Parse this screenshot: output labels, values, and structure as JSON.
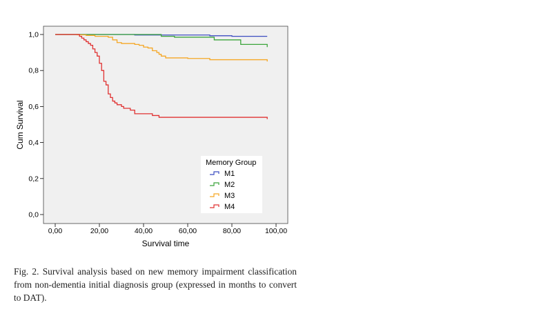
{
  "chart_data": {
    "type": "line",
    "subtype": "kaplan-meier-step",
    "xlabel": "Survival time",
    "ylabel": "Cum Survival",
    "xlim": [
      0,
      100
    ],
    "ylim": [
      0,
      1
    ],
    "x_ticks": [
      0,
      20,
      40,
      60,
      80,
      100
    ],
    "x_tick_labels": [
      "0,00",
      "20,00",
      "40,00",
      "60,00",
      "80,00",
      "100,00"
    ],
    "y_ticks": [
      0,
      0.2,
      0.4,
      0.6,
      0.8,
      1.0
    ],
    "y_tick_labels": [
      "0,0",
      "0,2",
      "0,4",
      "0,6",
      "0,8",
      "1,0"
    ],
    "grid": false,
    "plot_background": "#f0f0f0",
    "legend": {
      "title": "Memory Group",
      "placement": "bottom-right-inside"
    },
    "series": [
      {
        "name": "M1",
        "color": "#3b4cc0",
        "steps": [
          [
            0,
            1.0
          ],
          [
            36,
            0.997
          ],
          [
            70,
            0.993
          ],
          [
            80,
            0.99
          ],
          [
            96,
            0.99
          ]
        ],
        "end": 0.99
      },
      {
        "name": "M2",
        "color": "#3aa43a",
        "steps": [
          [
            0,
            1.0
          ],
          [
            48,
            0.99
          ],
          [
            54,
            0.985
          ],
          [
            72,
            0.97
          ],
          [
            84,
            0.945
          ],
          [
            96,
            0.945
          ]
        ],
        "end": 0.93
      },
      {
        "name": "M3",
        "color": "#f5a623",
        "steps": [
          [
            0,
            1.0
          ],
          [
            10,
            0.998
          ],
          [
            14,
            0.995
          ],
          [
            18,
            0.99
          ],
          [
            24,
            0.985
          ],
          [
            26,
            0.97
          ],
          [
            28,
            0.955
          ],
          [
            30,
            0.95
          ],
          [
            36,
            0.945
          ],
          [
            38,
            0.94
          ],
          [
            40,
            0.93
          ],
          [
            42,
            0.925
          ],
          [
            44,
            0.91
          ],
          [
            46,
            0.9
          ],
          [
            47,
            0.89
          ],
          [
            48,
            0.88
          ],
          [
            50,
            0.87
          ],
          [
            60,
            0.867
          ],
          [
            70,
            0.86
          ],
          [
            96,
            0.86
          ]
        ],
        "end": 0.85
      },
      {
        "name": "M4",
        "color": "#e03030",
        "steps": [
          [
            0,
            1.0
          ],
          [
            11,
            0.99
          ],
          [
            12,
            0.98
          ],
          [
            13,
            0.97
          ],
          [
            14,
            0.96
          ],
          [
            15,
            0.95
          ],
          [
            16,
            0.94
          ],
          [
            17,
            0.92
          ],
          [
            18,
            0.9
          ],
          [
            19,
            0.88
          ],
          [
            20,
            0.84
          ],
          [
            21,
            0.8
          ],
          [
            22,
            0.74
          ],
          [
            23,
            0.72
          ],
          [
            24,
            0.67
          ],
          [
            25,
            0.65
          ],
          [
            26,
            0.63
          ],
          [
            27,
            0.62
          ],
          [
            28,
            0.61
          ],
          [
            30,
            0.6
          ],
          [
            31,
            0.59
          ],
          [
            34,
            0.58
          ],
          [
            36,
            0.56
          ],
          [
            44,
            0.55
          ],
          [
            47,
            0.54
          ],
          [
            96,
            0.54
          ]
        ],
        "end": 0.53
      }
    ]
  },
  "caption": "Fig. 2. Survival analysis based on new memory impairment classification from non-dementia initial diagnosis group (expressed in months to convert to DAT)."
}
